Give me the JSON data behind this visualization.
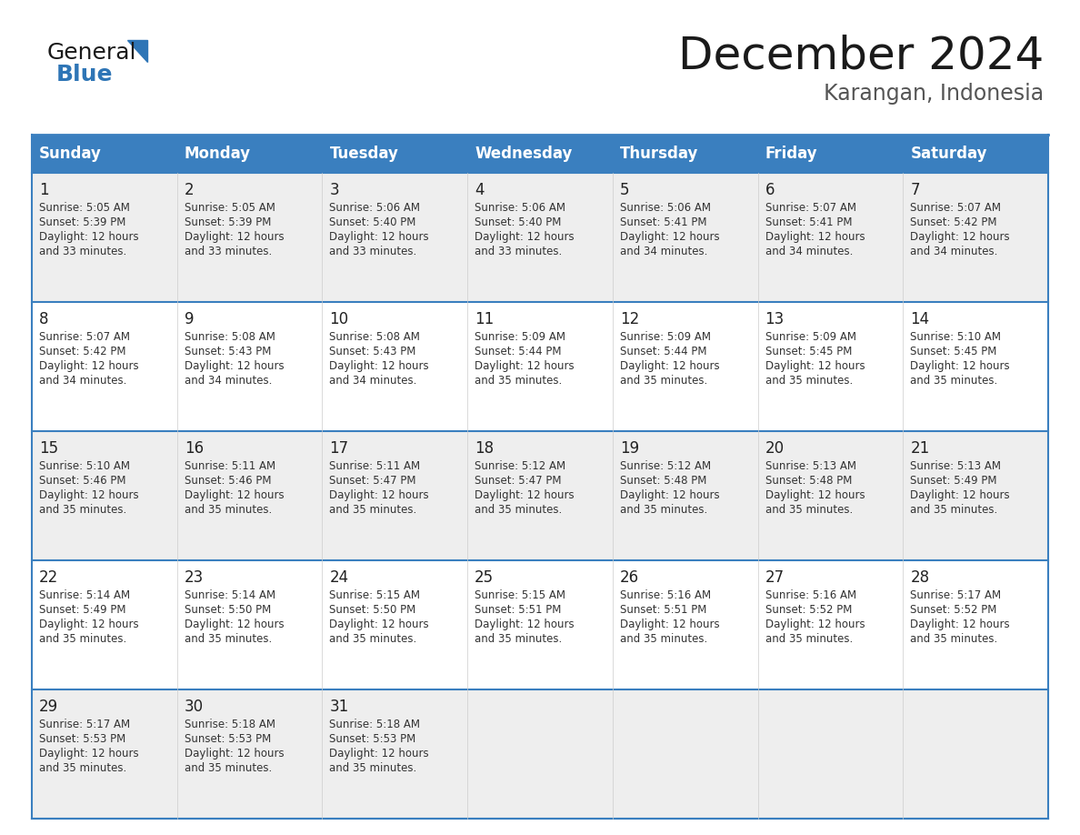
{
  "title": "December 2024",
  "subtitle": "Karangan, Indonesia",
  "header_color": "#3A7FBF",
  "header_text_color": "#FFFFFF",
  "cell_bg_even": "#EEEEEE",
  "cell_bg_odd": "#FFFFFF",
  "border_color": "#3A7FBF",
  "text_color": "#333333",
  "day_num_color": "#222222",
  "days_of_week": [
    "Sunday",
    "Monday",
    "Tuesday",
    "Wednesday",
    "Thursday",
    "Friday",
    "Saturday"
  ],
  "calendar_data": [
    [
      {
        "day": 1,
        "sunrise": "5:05 AM",
        "sunset": "5:39 PM",
        "daylight_min": "33"
      },
      {
        "day": 2,
        "sunrise": "5:05 AM",
        "sunset": "5:39 PM",
        "daylight_min": "33"
      },
      {
        "day": 3,
        "sunrise": "5:06 AM",
        "sunset": "5:40 PM",
        "daylight_min": "33"
      },
      {
        "day": 4,
        "sunrise": "5:06 AM",
        "sunset": "5:40 PM",
        "daylight_min": "33"
      },
      {
        "day": 5,
        "sunrise": "5:06 AM",
        "sunset": "5:41 PM",
        "daylight_min": "34"
      },
      {
        "day": 6,
        "sunrise": "5:07 AM",
        "sunset": "5:41 PM",
        "daylight_min": "34"
      },
      {
        "day": 7,
        "sunrise": "5:07 AM",
        "sunset": "5:42 PM",
        "daylight_min": "34"
      }
    ],
    [
      {
        "day": 8,
        "sunrise": "5:07 AM",
        "sunset": "5:42 PM",
        "daylight_min": "34"
      },
      {
        "day": 9,
        "sunrise": "5:08 AM",
        "sunset": "5:43 PM",
        "daylight_min": "34"
      },
      {
        "day": 10,
        "sunrise": "5:08 AM",
        "sunset": "5:43 PM",
        "daylight_min": "34"
      },
      {
        "day": 11,
        "sunrise": "5:09 AM",
        "sunset": "5:44 PM",
        "daylight_min": "35"
      },
      {
        "day": 12,
        "sunrise": "5:09 AM",
        "sunset": "5:44 PM",
        "daylight_min": "35"
      },
      {
        "day": 13,
        "sunrise": "5:09 AM",
        "sunset": "5:45 PM",
        "daylight_min": "35"
      },
      {
        "day": 14,
        "sunrise": "5:10 AM",
        "sunset": "5:45 PM",
        "daylight_min": "35"
      }
    ],
    [
      {
        "day": 15,
        "sunrise": "5:10 AM",
        "sunset": "5:46 PM",
        "daylight_min": "35"
      },
      {
        "day": 16,
        "sunrise": "5:11 AM",
        "sunset": "5:46 PM",
        "daylight_min": "35"
      },
      {
        "day": 17,
        "sunrise": "5:11 AM",
        "sunset": "5:47 PM",
        "daylight_min": "35"
      },
      {
        "day": 18,
        "sunrise": "5:12 AM",
        "sunset": "5:47 PM",
        "daylight_min": "35"
      },
      {
        "day": 19,
        "sunrise": "5:12 AM",
        "sunset": "5:48 PM",
        "daylight_min": "35"
      },
      {
        "day": 20,
        "sunrise": "5:13 AM",
        "sunset": "5:48 PM",
        "daylight_min": "35"
      },
      {
        "day": 21,
        "sunrise": "5:13 AM",
        "sunset": "5:49 PM",
        "daylight_min": "35"
      }
    ],
    [
      {
        "day": 22,
        "sunrise": "5:14 AM",
        "sunset": "5:49 PM",
        "daylight_min": "35"
      },
      {
        "day": 23,
        "sunrise": "5:14 AM",
        "sunset": "5:50 PM",
        "daylight_min": "35"
      },
      {
        "day": 24,
        "sunrise": "5:15 AM",
        "sunset": "5:50 PM",
        "daylight_min": "35"
      },
      {
        "day": 25,
        "sunrise": "5:15 AM",
        "sunset": "5:51 PM",
        "daylight_min": "35"
      },
      {
        "day": 26,
        "sunrise": "5:16 AM",
        "sunset": "5:51 PM",
        "daylight_min": "35"
      },
      {
        "day": 27,
        "sunrise": "5:16 AM",
        "sunset": "5:52 PM",
        "daylight_min": "35"
      },
      {
        "day": 28,
        "sunrise": "5:17 AM",
        "sunset": "5:52 PM",
        "daylight_min": "35"
      }
    ],
    [
      {
        "day": 29,
        "sunrise": "5:17 AM",
        "sunset": "5:53 PM",
        "daylight_min": "35"
      },
      {
        "day": 30,
        "sunrise": "5:18 AM",
        "sunset": "5:53 PM",
        "daylight_min": "35"
      },
      {
        "day": 31,
        "sunrise": "5:18 AM",
        "sunset": "5:53 PM",
        "daylight_min": "35"
      },
      null,
      null,
      null,
      null
    ]
  ],
  "logo_blue": "#2E75B6",
  "logo_black": "#1A1A1A",
  "title_fontsize": 36,
  "subtitle_fontsize": 17,
  "header_fontsize": 12,
  "day_num_fontsize": 12,
  "cell_text_fontsize": 8.5
}
